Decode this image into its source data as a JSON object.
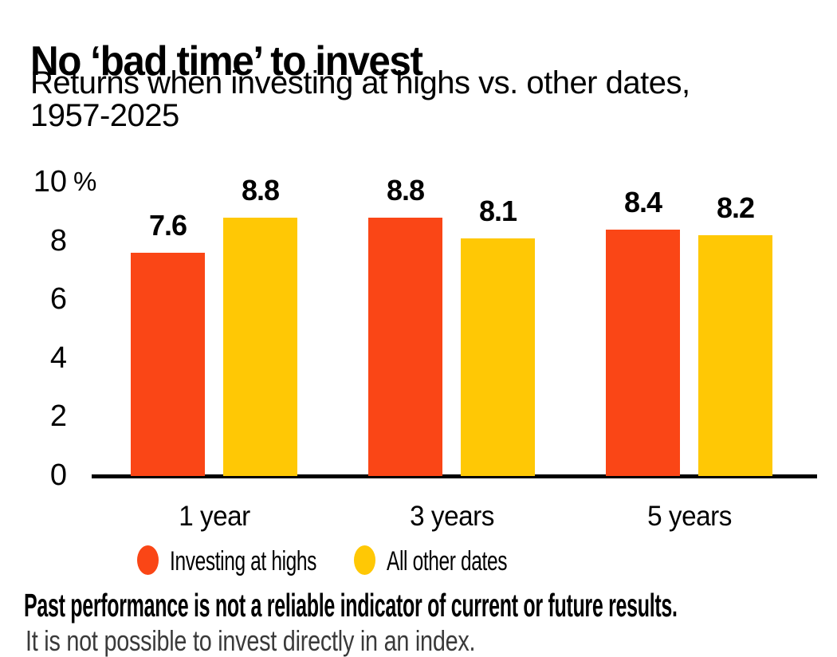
{
  "header": {
    "title": "No ‘bad time’ to invest",
    "subtitle": "Returns when investing at highs vs. other dates,\n1957-2025"
  },
  "chart_data": {
    "type": "bar",
    "title": "No ‘bad time’ to invest",
    "subtitle": "Returns when investing at highs vs. other dates, 1957-2025",
    "categories": [
      "1 year",
      "3 years",
      "5 years"
    ],
    "series": [
      {
        "name": "Investing at highs",
        "color": "#FA4616",
        "values": [
          7.6,
          8.8,
          8.4
        ]
      },
      {
        "name": "All other dates",
        "color": "#FFC805",
        "values": [
          8.8,
          8.1,
          8.2
        ]
      }
    ],
    "xlabel": "",
    "ylabel": "",
    "y_axis_unit": "%",
    "yticks": [
      0,
      2,
      4,
      6,
      8,
      10
    ],
    "ylim": [
      0,
      10
    ],
    "grid": false,
    "legend_position": "bottom",
    "axis_color": "#000000",
    "value_label_format": "one_decimal"
  },
  "footer": {
    "disclaimer": "Past performance is not a reliable indicator of current or future results.",
    "clipped_line": "It is not possible to invest directly in an index."
  }
}
